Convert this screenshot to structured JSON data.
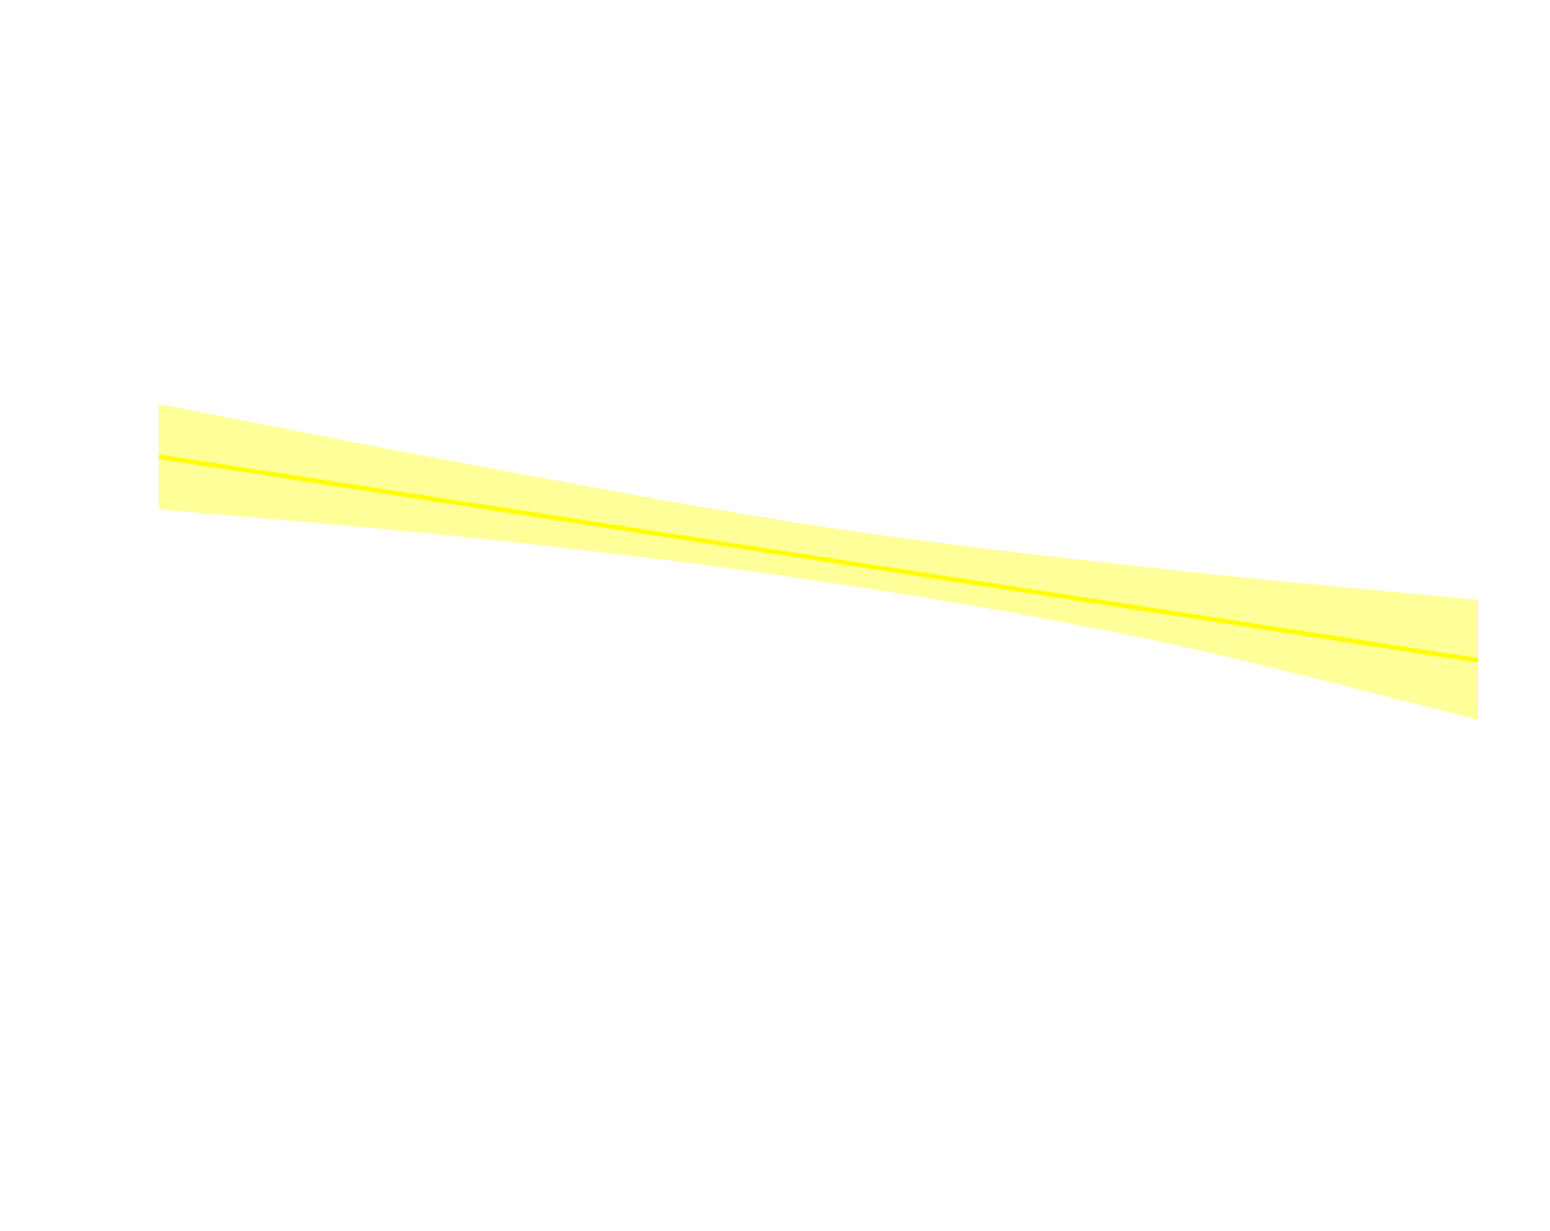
{
  "chart_data": {
    "type": "area",
    "title": "",
    "xlabel": "",
    "ylabel": "",
    "xlim": [
      0,
      1
    ],
    "ylim": [
      0,
      1
    ],
    "grid": false,
    "axes_visible": false,
    "series": [
      {
        "kind": "confidence-band",
        "color": "#ffff99",
        "x": [
          0,
          0.25,
          0.5,
          0.75,
          1
        ],
        "upper": [
          0.647,
          0.59,
          0.538,
          0.501,
          0.472
        ],
        "lower": [
          0.553,
          0.526,
          0.489,
          0.437,
          0.365
        ]
      },
      {
        "kind": "line",
        "color": "#ffff00",
        "x": [
          0,
          1
        ],
        "y": [
          0.6,
          0.418
        ]
      }
    ]
  }
}
